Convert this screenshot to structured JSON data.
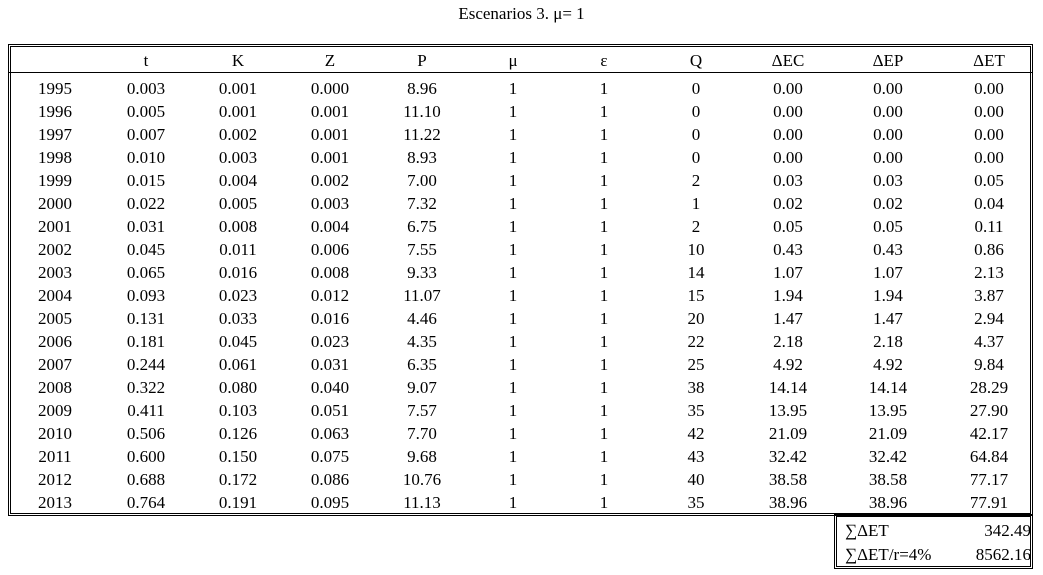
{
  "title": "Escenarios 3. μ= 1",
  "table": {
    "columns": [
      "",
      "t",
      "K",
      "Z",
      "P",
      "μ",
      "ε",
      "Q",
      "ΔEC",
      "ΔEP",
      "ΔET"
    ],
    "rows": [
      [
        "1995",
        "0.003",
        "0.001",
        "0.000",
        "8.96",
        "1",
        "1",
        "0",
        "0.00",
        "0.00",
        "0.00"
      ],
      [
        "1996",
        "0.005",
        "0.001",
        "0.001",
        "11.10",
        "1",
        "1",
        "0",
        "0.00",
        "0.00",
        "0.00"
      ],
      [
        "1997",
        "0.007",
        "0.002",
        "0.001",
        "11.22",
        "1",
        "1",
        "0",
        "0.00",
        "0.00",
        "0.00"
      ],
      [
        "1998",
        "0.010",
        "0.003",
        "0.001",
        "8.93",
        "1",
        "1",
        "0",
        "0.00",
        "0.00",
        "0.00"
      ],
      [
        "1999",
        "0.015",
        "0.004",
        "0.002",
        "7.00",
        "1",
        "1",
        "2",
        "0.03",
        "0.03",
        "0.05"
      ],
      [
        "2000",
        "0.022",
        "0.005",
        "0.003",
        "7.32",
        "1",
        "1",
        "1",
        "0.02",
        "0.02",
        "0.04"
      ],
      [
        "2001",
        "0.031",
        "0.008",
        "0.004",
        "6.75",
        "1",
        "1",
        "2",
        "0.05",
        "0.05",
        "0.11"
      ],
      [
        "2002",
        "0.045",
        "0.011",
        "0.006",
        "7.55",
        "1",
        "1",
        "10",
        "0.43",
        "0.43",
        "0.86"
      ],
      [
        "2003",
        "0.065",
        "0.016",
        "0.008",
        "9.33",
        "1",
        "1",
        "14",
        "1.07",
        "1.07",
        "2.13"
      ],
      [
        "2004",
        "0.093",
        "0.023",
        "0.012",
        "11.07",
        "1",
        "1",
        "15",
        "1.94",
        "1.94",
        "3.87"
      ],
      [
        "2005",
        "0.131",
        "0.033",
        "0.016",
        "4.46",
        "1",
        "1",
        "20",
        "1.47",
        "1.47",
        "2.94"
      ],
      [
        "2006",
        "0.181",
        "0.045",
        "0.023",
        "4.35",
        "1",
        "1",
        "22",
        "2.18",
        "2.18",
        "4.37"
      ],
      [
        "2007",
        "0.244",
        "0.061",
        "0.031",
        "6.35",
        "1",
        "1",
        "25",
        "4.92",
        "4.92",
        "9.84"
      ],
      [
        "2008",
        "0.322",
        "0.080",
        "0.040",
        "9.07",
        "1",
        "1",
        "38",
        "14.14",
        "14.14",
        "28.29"
      ],
      [
        "2009",
        "0.411",
        "0.103",
        "0.051",
        "7.57",
        "1",
        "1",
        "35",
        "13.95",
        "13.95",
        "27.90"
      ],
      [
        "2010",
        "0.506",
        "0.126",
        "0.063",
        "7.70",
        "1",
        "1",
        "42",
        "21.09",
        "21.09",
        "42.17"
      ],
      [
        "2011",
        "0.600",
        "0.150",
        "0.075",
        "9.68",
        "1",
        "1",
        "43",
        "32.42",
        "32.42",
        "64.84"
      ],
      [
        "2012",
        "0.688",
        "0.172",
        "0.086",
        "10.76",
        "1",
        "1",
        "40",
        "38.58",
        "38.58",
        "77.17"
      ],
      [
        "2013",
        "0.764",
        "0.191",
        "0.095",
        "11.13",
        "1",
        "1",
        "35",
        "38.96",
        "38.96",
        "77.91"
      ]
    ]
  },
  "summary": {
    "sum_label": "∑ΔET",
    "sum_value": "342.49",
    "rate_label": "∑ΔET/r=4%",
    "rate_value": "8562.16"
  }
}
